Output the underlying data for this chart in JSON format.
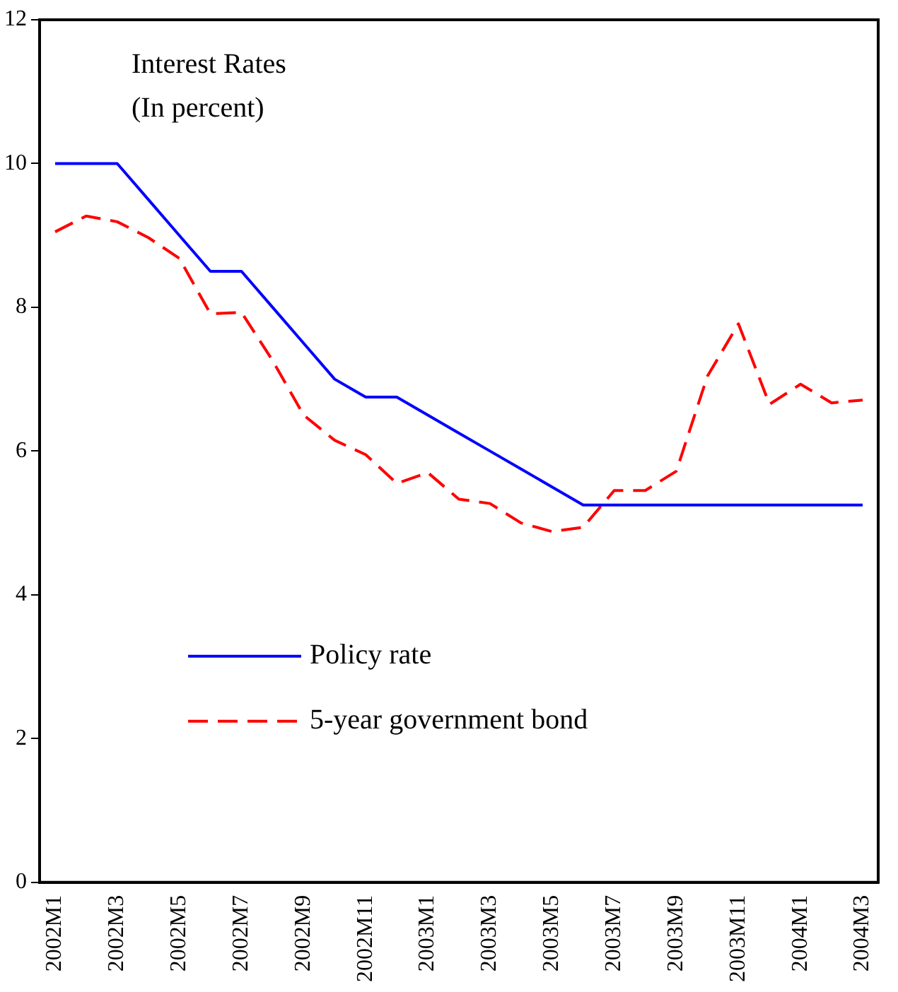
{
  "chart_data": {
    "type": "line",
    "title": "Interest Rates",
    "subtitle": "(In percent)",
    "categories": [
      "2002M1",
      null,
      "2002M3",
      null,
      "2002M5",
      null,
      "2002M7",
      null,
      "2002M9",
      null,
      "2002M11",
      null,
      "2003M1",
      null,
      "2003M3",
      null,
      "2003M5",
      null,
      "2003M7",
      null,
      "2003M9",
      null,
      "2003M11",
      null,
      "2004M1",
      null,
      "2004M3"
    ],
    "series": [
      {
        "name": "Policy rate",
        "color": "#0000ff",
        "line_style": "solid",
        "values": [
          10,
          10,
          10,
          9.5,
          9.0,
          8.5,
          8.5,
          8.0,
          7.5,
          7.0,
          6.75,
          6.75,
          6.5,
          6.25,
          6.0,
          5.75,
          5.5,
          5.25,
          5.25,
          5.25,
          5.25,
          5.25,
          5.25,
          5.25,
          5.25,
          5.25,
          5.25
        ]
      },
      {
        "name": "5-year government bond",
        "color": "#ff0000",
        "line_style": "dashed",
        "values": [
          9.05,
          9.27,
          9.19,
          8.97,
          8.68,
          7.91,
          7.93,
          7.26,
          6.5,
          6.15,
          5.95,
          5.55,
          5.7,
          5.33,
          5.27,
          5.0,
          4.88,
          4.94,
          5.45,
          5.45,
          5.72,
          7.04,
          7.77,
          6.65,
          6.93,
          6.67,
          6.71
        ]
      }
    ],
    "ylim": [
      0,
      12
    ],
    "yticks": [
      0,
      2,
      4,
      6,
      8,
      10,
      12
    ],
    "grid": false,
    "legend": "bottom left",
    "marker": "none"
  }
}
